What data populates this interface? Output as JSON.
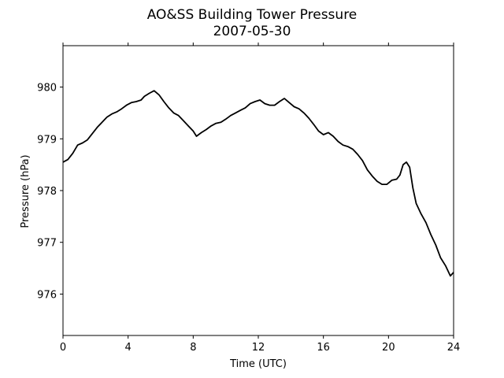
{
  "chart_data": {
    "type": "line",
    "title": "AO&SS Building Tower Pressure",
    "subtitle": "2007-05-30",
    "xlabel": "Time (UTC)",
    "ylabel": "Pressure (hPa)",
    "xlim": [
      0,
      24
    ],
    "ylim": [
      975.2,
      980.8
    ],
    "x_ticks": [
      0,
      4,
      8,
      12,
      16,
      20,
      24
    ],
    "y_ticks": [
      976,
      977,
      978,
      979,
      980
    ],
    "grid": false,
    "legend": "none",
    "line_color": "#000000",
    "series": [
      {
        "x": [
          0,
          0.3,
          0.6,
          0.9,
          1.2,
          1.5,
          1.8,
          2.1,
          2.4,
          2.7,
          3.0,
          3.3,
          3.6,
          3.9,
          4.2,
          4.5,
          4.8,
          5.0,
          5.3,
          5.6,
          5.9,
          6.2,
          6.5,
          6.8,
          7.1,
          7.4,
          7.7,
          8.0,
          8.2,
          8.5,
          8.8,
          9.1,
          9.4,
          9.7,
          10.0,
          10.3,
          10.6,
          10.9,
          11.2,
          11.5,
          11.8,
          12.1,
          12.4,
          12.7,
          13.0,
          13.3,
          13.6,
          13.9,
          14.2,
          14.5,
          14.8,
          15.1,
          15.4,
          15.7,
          16.0,
          16.3,
          16.6,
          16.9,
          17.2,
          17.5,
          17.8,
          18.1,
          18.4,
          18.7,
          19.0,
          19.3,
          19.6,
          19.9,
          20.2,
          20.5,
          20.7,
          20.9,
          21.1,
          21.3,
          21.5,
          21.7,
          22.0,
          22.3,
          22.6,
          22.9,
          23.2,
          23.5,
          23.8,
          24.0
        ],
        "y": [
          978.55,
          978.6,
          978.72,
          978.88,
          978.92,
          978.98,
          979.1,
          979.22,
          979.32,
          979.42,
          979.48,
          979.52,
          979.58,
          979.65,
          979.7,
          979.72,
          979.75,
          979.82,
          979.88,
          979.93,
          979.85,
          979.72,
          979.6,
          979.5,
          979.45,
          979.35,
          979.25,
          979.15,
          979.05,
          979.12,
          979.18,
          979.25,
          979.3,
          979.32,
          979.38,
          979.45,
          979.5,
          979.55,
          979.6,
          979.68,
          979.72,
          979.75,
          979.68,
          979.65,
          979.65,
          979.72,
          979.78,
          979.7,
          979.62,
          979.58,
          979.5,
          979.4,
          979.28,
          979.15,
          979.08,
          979.12,
          979.05,
          978.95,
          978.88,
          978.85,
          978.8,
          978.7,
          978.58,
          978.4,
          978.28,
          978.18,
          978.12,
          978.12,
          978.2,
          978.22,
          978.3,
          978.5,
          978.55,
          978.45,
          978.05,
          977.75,
          977.55,
          977.38,
          977.15,
          976.95,
          976.7,
          976.55,
          976.35,
          976.42
        ]
      }
    ]
  }
}
